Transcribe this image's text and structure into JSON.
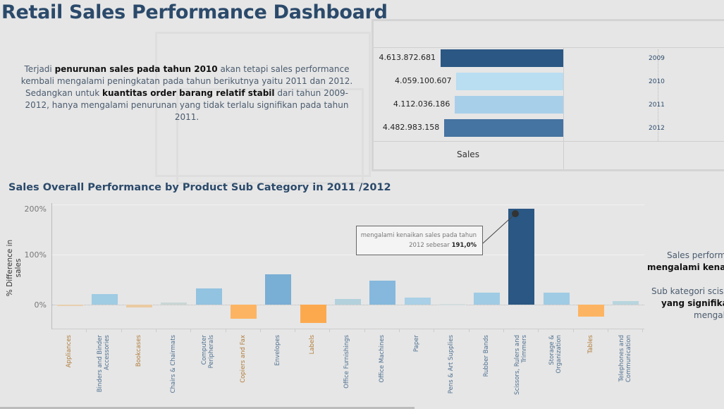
{
  "title": "Retail Sales Performance Dashboard",
  "summary": {
    "p1_a": "Terjadi ",
    "p1_b": "penurunan sales pada tahun 2010",
    "p1_c": " akan tetapi sales performance kembali mengalami peningkatan pada tahun berikutnya yaitu 2011 dan 2012.",
    "p2_a": "Sedangkan untuk ",
    "p2_b": "kuantitas order barang relatif stabil",
    "p2_c": " dari tahun 2009-2012, hanya mengalami penurunan yang tidak terlalu signifikan pada tahun 2011."
  },
  "chart_data": [
    {
      "type": "bar",
      "orientation": "horizontal",
      "xlabel": "Sales",
      "categories": [
        "2009",
        "2010",
        "2011",
        "2012"
      ],
      "values": [
        4613872681,
        4059100607,
        4112036186,
        4482983158
      ],
      "labels": [
        "4.613.872.681",
        "4.059.100.607",
        "4.112.036.186",
        "4.482.983.158"
      ],
      "colors": [
        "#2a5783",
        "#b9ddf1",
        "#a7cfe9",
        "#4573a2"
      ]
    },
    {
      "type": "bar",
      "title": "Sales Overall Performance by Product Sub Category in 2011 /2012",
      "ylabel": "% Difference in sales",
      "ylim": [
        -50,
        200
      ],
      "yticks": [
        "200%",
        "100%",
        "0%"
      ],
      "categories": [
        "Appliances",
        "Binders and Binder\nAccessories",
        "Bookcases",
        "Chairs & Chairmats",
        "Computer\nPeripherals",
        "Copiers and Fax",
        "Envelopes",
        "Labels",
        "Office Furnishings",
        "Office Machines",
        "Paper",
        "Pens & Art Supplies",
        "Rubber Bands",
        "Scissors, Rulers and\nTrimmers",
        "Storage &\nOrganization",
        "Tables",
        "Telephones and\nCommunication"
      ],
      "values": [
        -2,
        21,
        -5,
        4,
        32,
        -28,
        61,
        -37,
        11,
        48,
        14,
        1,
        24,
        191,
        24,
        -24,
        7
      ],
      "colors": [
        "#e8cfae",
        "#9fcbe3",
        "#eacaa2",
        "#c9d6d6",
        "#92c3e0",
        "#fdb462",
        "#79aed5",
        "#fca94e",
        "#b2d1dc",
        "#85b8dc",
        "#a9d0e6",
        "#d3dcdc",
        "#9fcbe4",
        "#2a5783",
        "#9fcbe4",
        "#fdb462",
        "#b8d5de"
      ],
      "annotation": {
        "text_a": "mengalami kenaikan sales pada tahun",
        "text_b": "2012 sebesar ",
        "text_c": "191,0%"
      }
    }
  ],
  "right_text": {
    "l1": "Sales perform",
    "l2": "mengalami kenaika",
    "l3": "Sub kategori sciss",
    "l4": "yang signifikan",
    "l5": "mengala"
  }
}
